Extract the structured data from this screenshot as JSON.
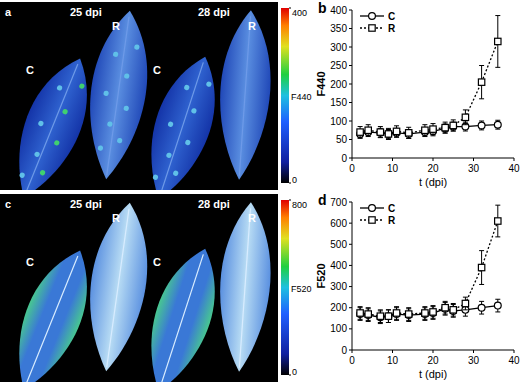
{
  "chart_data": [
    {
      "type": "image",
      "title": "a",
      "annotations": [
        "25 dpi",
        "28 dpi"
      ],
      "labels": [
        "C",
        "R",
        "C",
        "R"
      ],
      "colorbar_label": "F440",
      "colorbar_range": [
        0,
        400
      ],
      "colorbar_ticks": [
        0,
        400
      ]
    },
    {
      "type": "line",
      "title": "b",
      "x_label": "t (dpi)",
      "y_label": "F440",
      "x": [
        2,
        4,
        7,
        9,
        11,
        14,
        18,
        20,
        23,
        25,
        28,
        32,
        36
      ],
      "xlim": [
        0,
        40
      ],
      "xticks": [
        0,
        10,
        20,
        30,
        40
      ],
      "ylim": [
        0,
        400
      ],
      "yticks": [
        0,
        50,
        100,
        150,
        200,
        250,
        300,
        350,
        400
      ],
      "legend": "upper left",
      "series": [
        {
          "name": "C",
          "color": "#000000",
          "marker": "circle",
          "line_style": "solid",
          "values": [
            65,
            70,
            68,
            65,
            68,
            65,
            70,
            72,
            80,
            85,
            85,
            88,
            90
          ],
          "errors": [
            12,
            12,
            12,
            12,
            12,
            12,
            12,
            12,
            12,
            12,
            12,
            12,
            12
          ]
        },
        {
          "name": "R",
          "color": "#000000",
          "marker": "square",
          "line_style": "dotted",
          "values": [
            70,
            75,
            70,
            65,
            72,
            68,
            75,
            78,
            82,
            88,
            110,
            205,
            315
          ],
          "errors": [
            15,
            15,
            15,
            15,
            15,
            15,
            15,
            15,
            15,
            15,
            20,
            45,
            70
          ]
        }
      ]
    },
    {
      "type": "image",
      "title": "c",
      "annotations": [
        "25 dpi",
        "28 dpi"
      ],
      "labels": [
        "C",
        "R",
        "C",
        "R"
      ],
      "colorbar_label": "F520",
      "colorbar_range": [
        0,
        800
      ],
      "colorbar_ticks": [
        0,
        800
      ]
    },
    {
      "type": "line",
      "title": "d",
      "x_label": "t (dpi)",
      "y_label": "F520",
      "x": [
        2,
        4,
        7,
        9,
        11,
        14,
        18,
        20,
        23,
        25,
        28,
        32,
        36
      ],
      "xlim": [
        0,
        40
      ],
      "xticks": [
        0,
        10,
        20,
        30,
        40
      ],
      "ylim": [
        0,
        700
      ],
      "yticks": [
        0,
        100,
        200,
        300,
        400,
        500,
        600,
        700
      ],
      "legend": "upper left",
      "series": [
        {
          "name": "C",
          "color": "#000000",
          "marker": "circle",
          "line_style": "solid",
          "values": [
            170,
            165,
            155,
            160,
            170,
            165,
            170,
            175,
            195,
            185,
            190,
            200,
            210
          ],
          "errors": [
            30,
            30,
            30,
            30,
            30,
            30,
            30,
            30,
            30,
            30,
            30,
            30,
            30
          ]
        },
        {
          "name": "R",
          "color": "#000000",
          "marker": "square",
          "line_style": "dotted",
          "values": [
            175,
            170,
            160,
            160,
            175,
            170,
            175,
            180,
            200,
            190,
            220,
            390,
            610
          ],
          "errors": [
            30,
            30,
            30,
            30,
            30,
            30,
            30,
            30,
            30,
            30,
            30,
            80,
            75
          ]
        }
      ]
    }
  ]
}
